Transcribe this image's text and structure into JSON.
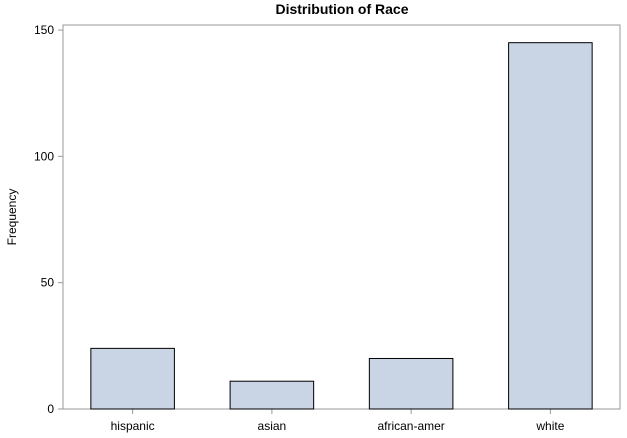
{
  "chart_data": {
    "type": "bar",
    "title": "Distribution of Race",
    "xlabel": "",
    "ylabel": "Frequency",
    "categories": [
      "hispanic",
      "asian",
      "african-amer",
      "white"
    ],
    "values": [
      24,
      11,
      20,
      145
    ],
    "ylim": [
      0,
      152
    ],
    "yticks": [
      0,
      50,
      100,
      150
    ],
    "grid": false,
    "legend": "none",
    "bar_color": "#c9d5e4",
    "bar_edge_color": "#000000",
    "frame_color": "#9a9a9a"
  }
}
